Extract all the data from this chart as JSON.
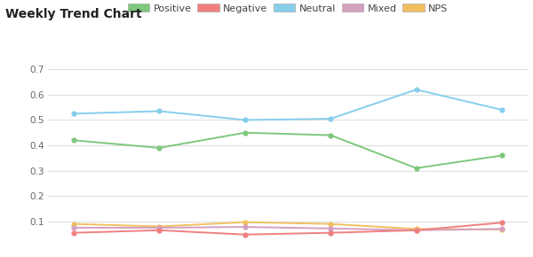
{
  "title": "Weekly Trend Chart",
  "positive": [
    0.42,
    0.39,
    0.45,
    0.44,
    0.31,
    0.36
  ],
  "negative": [
    0.055,
    0.065,
    0.048,
    0.055,
    0.065,
    0.095
  ],
  "neutral": [
    0.525,
    0.535,
    0.5,
    0.505,
    0.62,
    0.54
  ],
  "mixed": [
    0.075,
    0.075,
    0.078,
    0.072,
    0.065,
    0.07
  ],
  "nps": [
    0.09,
    0.08,
    0.097,
    0.09,
    0.07,
    0.068
  ],
  "positive_color": "#7dc87d",
  "negative_color": "#f08080",
  "neutral_color": "#87ceeb",
  "mixed_color": "#d4a0c0",
  "nps_color": "#f0c060",
  "background_color": "#ffffff",
  "grid_color": "#e0e0e0",
  "ylim": [
    0,
    0.72
  ],
  "yticks": [
    0.1,
    0.2,
    0.3,
    0.4,
    0.5,
    0.6,
    0.7
  ],
  "title_fontsize": 10,
  "legend_fontsize": 8
}
